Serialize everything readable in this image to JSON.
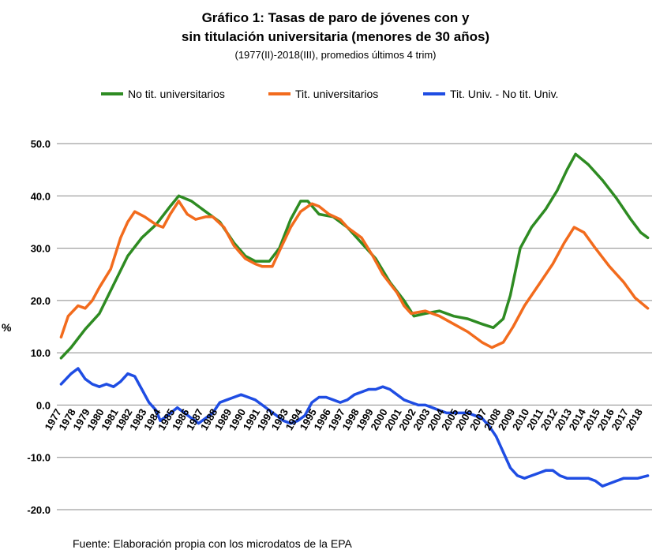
{
  "chart_data": {
    "type": "line",
    "title_line1": "Gráfico 1: Tasas de paro de jóvenes con y",
    "title_line2": "sin titulación universitaria (menores de 30 años)",
    "subtitle": "(1977(II)-2018(III), promedios últimos 4 trim)",
    "ylabel": "%",
    "ylim": [
      -20,
      50
    ],
    "y_ticks": [
      "50.0",
      "40.0",
      "30.0",
      "20.0",
      "10.0",
      "0.0",
      "-10.0",
      "-20.0"
    ],
    "x_ticks": [
      "1977",
      "1978",
      "1979",
      "1980",
      "1981",
      "1982",
      "1983",
      "1984",
      "1985",
      "1986",
      "1987",
      "1988",
      "1989",
      "1990",
      "1991",
      "1992",
      "1993",
      "1994",
      "1995",
      "1996",
      "1997",
      "1998",
      "1999",
      "2000",
      "2001",
      "2002",
      "2003",
      "2004",
      "2005",
      "2006",
      "2007",
      "2008",
      "2009",
      "2010",
      "2011",
      "2012",
      "2013",
      "2014",
      "2015",
      "2016",
      "2017",
      "2018"
    ],
    "source": "Fuente: Elaboración propia con los microdatos de la EPA",
    "series": [
      {
        "name": "No tit. universitarios",
        "color": "#2e8b22",
        "points": [
          [
            1977.3,
            9.0
          ],
          [
            1978.0,
            11.0
          ],
          [
            1979.0,
            14.5
          ],
          [
            1980.0,
            17.5
          ],
          [
            1981.0,
            23.0
          ],
          [
            1982.0,
            28.5
          ],
          [
            1983.0,
            32.0
          ],
          [
            1984.0,
            34.5
          ],
          [
            1985.0,
            38.0
          ],
          [
            1985.6,
            40.0
          ],
          [
            1986.5,
            39.0
          ],
          [
            1987.5,
            37.0
          ],
          [
            1988.5,
            35.0
          ],
          [
            1989.5,
            31.0
          ],
          [
            1990.3,
            28.5
          ],
          [
            1991.0,
            27.5
          ],
          [
            1992.0,
            27.5
          ],
          [
            1992.7,
            30.0
          ],
          [
            1993.5,
            35.5
          ],
          [
            1994.2,
            39.0
          ],
          [
            1994.7,
            39.0
          ],
          [
            1995.5,
            36.5
          ],
          [
            1996.5,
            36.0
          ],
          [
            1997.5,
            34.0
          ],
          [
            1998.5,
            31.0
          ],
          [
            1999.5,
            28.0
          ],
          [
            2000.5,
            23.5
          ],
          [
            2001.5,
            20.0
          ],
          [
            2002.2,
            17.0
          ],
          [
            2003.0,
            17.5
          ],
          [
            2004.0,
            18.0
          ],
          [
            2005.0,
            17.0
          ],
          [
            2006.0,
            16.5
          ],
          [
            2007.0,
            15.5
          ],
          [
            2007.8,
            14.8
          ],
          [
            2008.5,
            16.5
          ],
          [
            2009.0,
            21.0
          ],
          [
            2009.7,
            30.0
          ],
          [
            2010.5,
            34.0
          ],
          [
            2011.5,
            37.5
          ],
          [
            2012.3,
            41.0
          ],
          [
            2013.0,
            45.0
          ],
          [
            2013.6,
            48.0
          ],
          [
            2014.5,
            46.0
          ],
          [
            2015.5,
            43.0
          ],
          [
            2016.5,
            39.5
          ],
          [
            2017.5,
            35.5
          ],
          [
            2018.2,
            33.0
          ],
          [
            2018.7,
            32.0
          ]
        ]
      },
      {
        "name": "Tit. universitarios",
        "color": "#f26b1d",
        "points": [
          [
            1977.3,
            13.0
          ],
          [
            1977.8,
            17.0
          ],
          [
            1978.5,
            19.0
          ],
          [
            1979.0,
            18.5
          ],
          [
            1979.5,
            20.0
          ],
          [
            1980.0,
            22.5
          ],
          [
            1980.8,
            26.0
          ],
          [
            1981.5,
            32.0
          ],
          [
            1982.0,
            35.0
          ],
          [
            1982.5,
            37.0
          ],
          [
            1983.2,
            36.0
          ],
          [
            1984.0,
            34.5
          ],
          [
            1984.5,
            34.0
          ],
          [
            1985.0,
            36.5
          ],
          [
            1985.6,
            39.0
          ],
          [
            1986.2,
            36.5
          ],
          [
            1986.8,
            35.5
          ],
          [
            1987.5,
            36.0
          ],
          [
            1988.0,
            36.0
          ],
          [
            1988.8,
            34.0
          ],
          [
            1989.5,
            30.5
          ],
          [
            1990.3,
            28.0
          ],
          [
            1991.0,
            27.0
          ],
          [
            1991.5,
            26.5
          ],
          [
            1992.2,
            26.5
          ],
          [
            1992.8,
            30.0
          ],
          [
            1993.5,
            34.0
          ],
          [
            1994.2,
            37.0
          ],
          [
            1995.0,
            38.5
          ],
          [
            1995.5,
            38.0
          ],
          [
            1996.2,
            36.5
          ],
          [
            1997.0,
            35.5
          ],
          [
            1997.5,
            34.0
          ],
          [
            1998.5,
            32.0
          ],
          [
            1999.3,
            28.5
          ],
          [
            2000.0,
            25.0
          ],
          [
            2001.0,
            21.5
          ],
          [
            2001.5,
            19.0
          ],
          [
            2002.0,
            17.5
          ],
          [
            2003.0,
            18.0
          ],
          [
            2004.0,
            17.0
          ],
          [
            2005.0,
            15.5
          ],
          [
            2006.0,
            14.0
          ],
          [
            2007.0,
            12.0
          ],
          [
            2007.7,
            11.0
          ],
          [
            2008.5,
            12.0
          ],
          [
            2009.2,
            15.0
          ],
          [
            2010.0,
            19.0
          ],
          [
            2011.0,
            23.0
          ],
          [
            2012.0,
            27.0
          ],
          [
            2012.8,
            31.0
          ],
          [
            2013.5,
            34.0
          ],
          [
            2014.2,
            33.0
          ],
          [
            2015.0,
            30.0
          ],
          [
            2016.0,
            26.5
          ],
          [
            2017.0,
            23.5
          ],
          [
            2017.8,
            20.5
          ],
          [
            2018.7,
            18.5
          ]
        ]
      },
      {
        "name": "Tit. Univ. - No tit. Univ.",
        "color": "#1f4de3",
        "points": [
          [
            1977.3,
            4.0
          ],
          [
            1978.0,
            6.0
          ],
          [
            1978.5,
            7.0
          ],
          [
            1979.0,
            5.0
          ],
          [
            1979.5,
            4.0
          ],
          [
            1980.0,
            3.5
          ],
          [
            1980.5,
            4.0
          ],
          [
            1981.0,
            3.5
          ],
          [
            1981.5,
            4.5
          ],
          [
            1982.0,
            6.0
          ],
          [
            1982.5,
            5.5
          ],
          [
            1983.0,
            3.0
          ],
          [
            1983.5,
            0.5
          ],
          [
            1984.0,
            -1.0
          ],
          [
            1984.3,
            -3.0
          ],
          [
            1984.8,
            -2.0
          ],
          [
            1985.5,
            -0.5
          ],
          [
            1986.0,
            -1.5
          ],
          [
            1986.5,
            -2.5
          ],
          [
            1987.0,
            -3.5
          ],
          [
            1987.5,
            -2.5
          ],
          [
            1988.0,
            -1.5
          ],
          [
            1988.5,
            0.5
          ],
          [
            1989.0,
            1.0
          ],
          [
            1989.5,
            1.5
          ],
          [
            1990.0,
            2.0
          ],
          [
            1990.5,
            1.5
          ],
          [
            1991.0,
            1.0
          ],
          [
            1991.5,
            0.0
          ],
          [
            1992.0,
            -1.0
          ],
          [
            1992.5,
            -2.0
          ],
          [
            1993.0,
            -3.0
          ],
          [
            1993.5,
            -3.5
          ],
          [
            1994.0,
            -3.0
          ],
          [
            1994.5,
            -2.0
          ],
          [
            1995.0,
            0.5
          ],
          [
            1995.5,
            1.5
          ],
          [
            1996.0,
            1.5
          ],
          [
            1996.5,
            1.0
          ],
          [
            1997.0,
            0.5
          ],
          [
            1997.5,
            1.0
          ],
          [
            1998.0,
            2.0
          ],
          [
            1998.5,
            2.5
          ],
          [
            1999.0,
            3.0
          ],
          [
            1999.5,
            3.0
          ],
          [
            2000.0,
            3.5
          ],
          [
            2000.5,
            3.0
          ],
          [
            2001.0,
            2.0
          ],
          [
            2001.5,
            1.0
          ],
          [
            2002.0,
            0.5
          ],
          [
            2002.5,
            0.0
          ],
          [
            2003.0,
            0.0
          ],
          [
            2003.5,
            -0.5
          ],
          [
            2004.0,
            -1.0
          ],
          [
            2004.5,
            -1.5
          ],
          [
            2005.0,
            -1.5
          ],
          [
            2005.5,
            -1.5
          ],
          [
            2006.0,
            -1.5
          ],
          [
            2006.5,
            -2.0
          ],
          [
            2007.0,
            -2.5
          ],
          [
            2007.5,
            -4.0
          ],
          [
            2008.0,
            -6.0
          ],
          [
            2008.5,
            -9.0
          ],
          [
            2009.0,
            -12.0
          ],
          [
            2009.5,
            -13.5
          ],
          [
            2010.0,
            -14.0
          ],
          [
            2010.5,
            -13.5
          ],
          [
            2011.0,
            -13.0
          ],
          [
            2011.5,
            -12.5
          ],
          [
            2012.0,
            -12.5
          ],
          [
            2012.5,
            -13.5
          ],
          [
            2013.0,
            -14.0
          ],
          [
            2013.5,
            -14.0
          ],
          [
            2014.0,
            -14.0
          ],
          [
            2014.5,
            -14.0
          ],
          [
            2015.0,
            -14.5
          ],
          [
            2015.5,
            -15.5
          ],
          [
            2016.0,
            -15.0
          ],
          [
            2016.5,
            -14.5
          ],
          [
            2017.0,
            -14.0
          ],
          [
            2017.5,
            -14.0
          ],
          [
            2018.0,
            -14.0
          ],
          [
            2018.7,
            -13.5
          ]
        ]
      }
    ]
  }
}
